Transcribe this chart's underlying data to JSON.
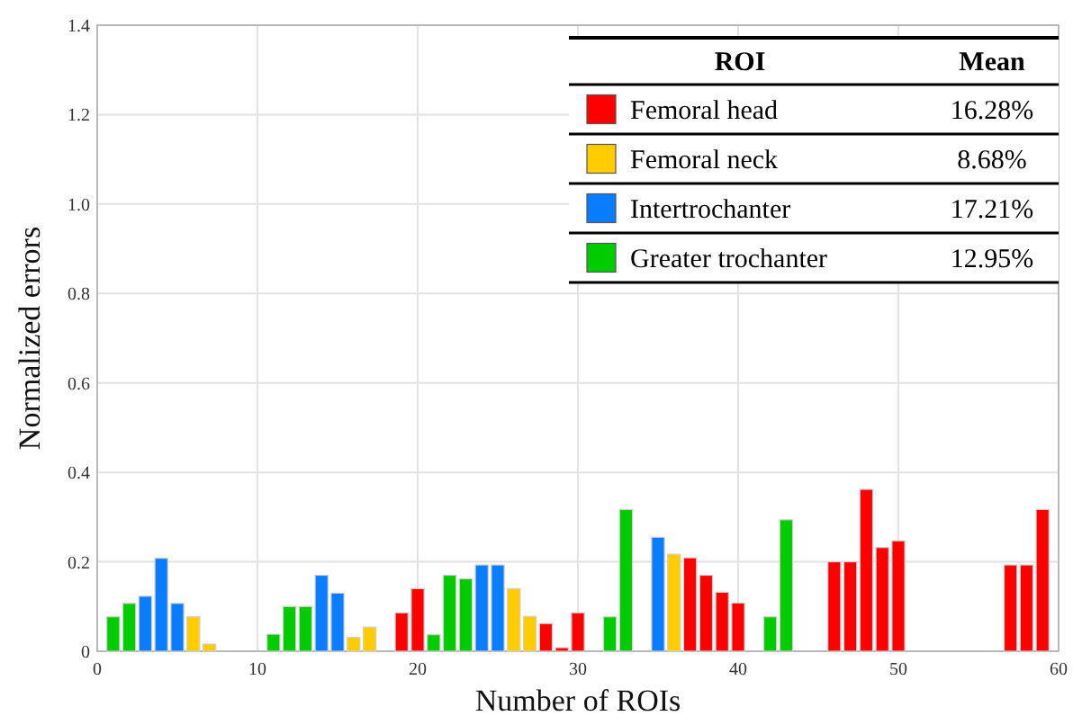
{
  "chart_data": {
    "type": "bar",
    "xlabel": "Number of ROIs",
    "ylabel": "Normalized errors",
    "legend_title": "ROI",
    "annotations": [
      "Mean",
      "16.28%",
      "8.68%",
      "17.21%",
      "12.95%"
    ],
    "xlim": [
      0,
      60
    ],
    "xticks": [
      0,
      10,
      20,
      30,
      40,
      50,
      60
    ],
    "ylim": [
      0,
      1.4
    ],
    "yticks": [
      0,
      0.2,
      0.4,
      0.6,
      0.8,
      {
        "value": 1,
        "label": "1.0"
      },
      1.2,
      1.4
    ],
    "grid": true,
    "legend": "top right",
    "series": [
      {
        "name": "Femoral head",
        "color": "#ff0000",
        "x": [
          19,
          20,
          28,
          29,
          30,
          37,
          38,
          39,
          40,
          46,
          47,
          48,
          49,
          50,
          57,
          58,
          59
        ],
        "values": [
          0.086,
          0.14,
          0.062,
          0.008,
          0.086,
          0.209,
          0.17,
          0.132,
          0.108,
          0.2,
          0.2,
          0.362,
          0.232,
          0.247,
          0.193,
          0.193,
          0.317
        ]
      },
      {
        "name": "Femoral neck",
        "color": "#ffcc00",
        "x": [
          6,
          7,
          16,
          17,
          26,
          27,
          36
        ],
        "values": [
          0.077,
          0.016,
          0.031,
          0.054,
          0.14,
          0.078,
          0.217
        ]
      },
      {
        "name": "Intertrochanter",
        "color": "#0a7cff",
        "x": [
          3,
          4,
          5,
          14,
          15,
          24,
          25,
          35
        ],
        "values": [
          0.123,
          0.208,
          0.107,
          0.17,
          0.13,
          0.193,
          0.193,
          0.255
        ]
      },
      {
        "name": "Greater trochanter",
        "color": "#00cc00",
        "x": [
          1,
          2,
          11,
          12,
          13,
          21,
          22,
          23,
          32,
          33,
          42,
          43
        ],
        "values": [
          0.077,
          0.107,
          0.038,
          0.1,
          0.1,
          0.037,
          0.17,
          0.162,
          0.077,
          0.317,
          0.077,
          0.294
        ]
      }
    ]
  }
}
